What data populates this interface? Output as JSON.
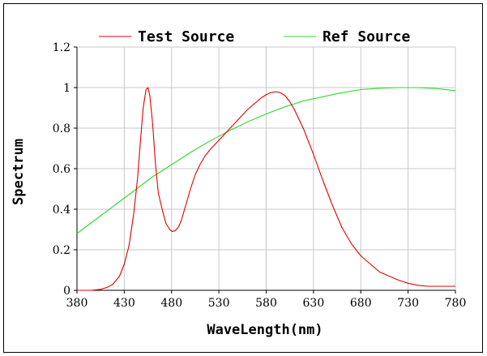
{
  "chart_data": {
    "type": "line",
    "xlabel": "WaveLength(nm)",
    "ylabel": "Spectrum",
    "xlim": [
      380,
      780
    ],
    "ylim": [
      0,
      1.2
    ],
    "x_ticks": [
      "380",
      "430",
      "480",
      "530",
      "580",
      "630",
      "680",
      "730",
      "780"
    ],
    "y_ticks": [
      "0",
      "0.2",
      "0.4",
      "0.6",
      "0.8",
      "1",
      "1.2"
    ],
    "grid": true,
    "legend_position": "top",
    "series": [
      {
        "name": "Test Source",
        "color": "#e00000",
        "x": [
          380,
          395,
          405,
          412,
          418,
          425,
          430,
          435,
          440,
          444,
          447,
          450,
          453,
          455,
          457,
          460,
          463,
          466,
          470,
          474,
          478,
          481,
          484,
          487,
          490,
          495,
          500,
          505,
          510,
          515,
          520,
          530,
          540,
          550,
          560,
          570,
          575,
          580,
          585,
          590,
          595,
          600,
          605,
          610,
          620,
          630,
          640,
          650,
          660,
          670,
          680,
          690,
          700,
          710,
          720,
          730,
          740,
          750,
          760,
          770,
          780
        ],
        "y": [
          0,
          0,
          0.005,
          0.015,
          0.03,
          0.07,
          0.13,
          0.22,
          0.38,
          0.55,
          0.73,
          0.9,
          0.99,
          1.0,
          0.96,
          0.82,
          0.62,
          0.48,
          0.4,
          0.33,
          0.3,
          0.29,
          0.295,
          0.31,
          0.34,
          0.42,
          0.5,
          0.57,
          0.62,
          0.66,
          0.69,
          0.74,
          0.79,
          0.84,
          0.89,
          0.93,
          0.95,
          0.965,
          0.975,
          0.98,
          0.975,
          0.96,
          0.93,
          0.89,
          0.79,
          0.67,
          0.54,
          0.42,
          0.31,
          0.23,
          0.17,
          0.13,
          0.09,
          0.07,
          0.05,
          0.035,
          0.025,
          0.02,
          0.02,
          0.02,
          0.02
        ]
      },
      {
        "name": "Ref Source",
        "color": "#2ed82e",
        "x": [
          380,
          400,
          420,
          440,
          460,
          480,
          500,
          520,
          540,
          560,
          580,
          600,
          620,
          640,
          660,
          680,
          700,
          720,
          740,
          760,
          780
        ],
        "y": [
          0.28,
          0.35,
          0.42,
          0.49,
          0.56,
          0.62,
          0.68,
          0.735,
          0.785,
          0.83,
          0.87,
          0.905,
          0.935,
          0.955,
          0.975,
          0.99,
          0.997,
          1.0,
          1.0,
          0.995,
          0.985
        ]
      }
    ]
  }
}
